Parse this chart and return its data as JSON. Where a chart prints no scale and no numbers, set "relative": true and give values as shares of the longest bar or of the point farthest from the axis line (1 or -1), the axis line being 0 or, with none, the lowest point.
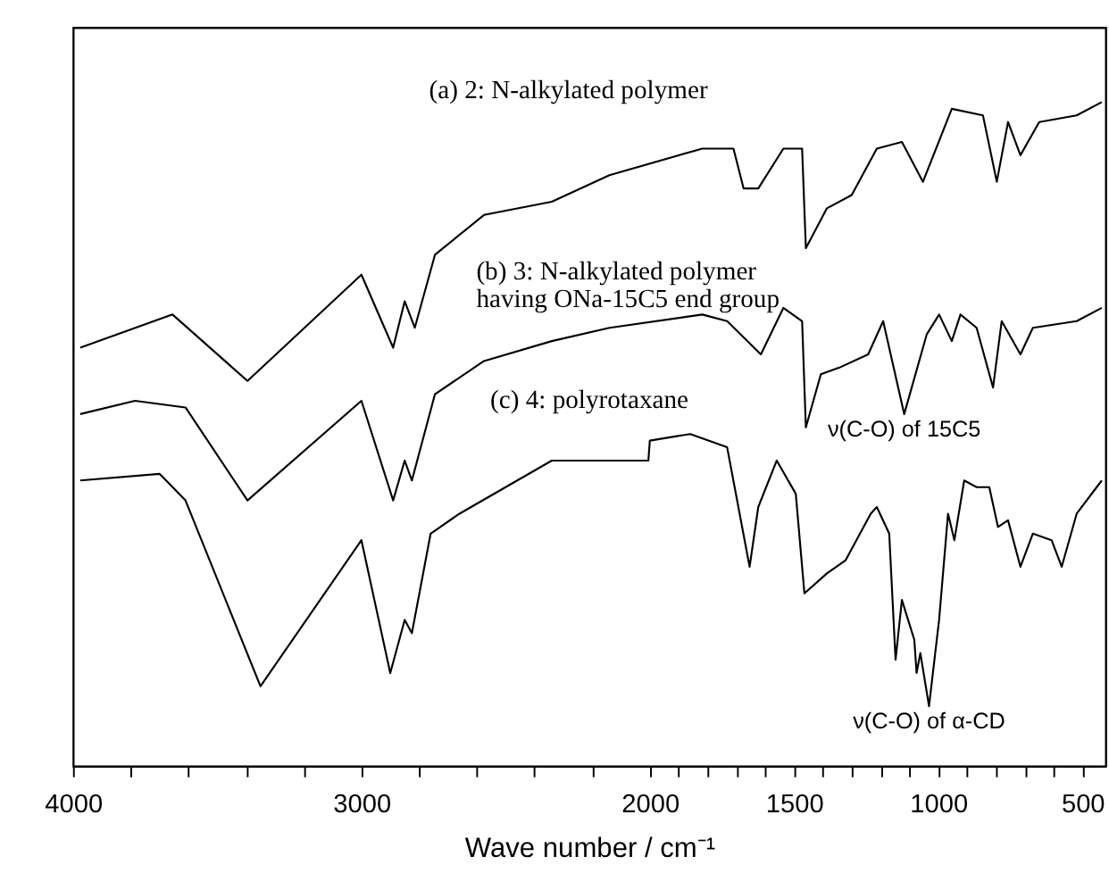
{
  "chart_data": {
    "type": "line",
    "relative": true,
    "xlabel": "Wave number / cm⁻¹",
    "xlim": [
      4000,
      420
    ],
    "xticks": [
      4000,
      {
        "value": 3800,
        "label": null
      },
      {
        "value": 3600,
        "label": null
      },
      {
        "value": 3400,
        "label": null
      },
      {
        "value": 3200,
        "label": null
      },
      3000,
      {
        "value": 2800,
        "label": null
      },
      {
        "value": 2600,
        "label": null
      },
      {
        "value": 2400,
        "label": null
      },
      {
        "value": 2200,
        "label": null
      },
      2000,
      {
        "value": 1900,
        "label": null
      },
      {
        "value": 1800,
        "label": null
      },
      {
        "value": 1700,
        "label": null
      },
      {
        "value": 1600,
        "label": null
      },
      1500,
      {
        "value": 1400,
        "label": null
      },
      {
        "value": 1300,
        "label": null
      },
      {
        "value": 1200,
        "label": null
      },
      {
        "value": 1100,
        "label": null
      },
      1000,
      {
        "value": 900,
        "label": null
      },
      {
        "value": 800,
        "label": null
      },
      {
        "value": 700,
        "label": null
      },
      {
        "value": 600,
        "label": null
      },
      500
    ],
    "grid": false,
    "marker": "none",
    "line_style": "solid",
    "series": [
      {
        "name": "(a) 2: N-alkylated polymer",
        "color": "#000000",
        "x": [
          3975,
          3655,
          3395,
          3000,
          2890,
          2850,
          2815,
          2745,
          2575,
          2340,
          2140,
          1818,
          1710,
          1675,
          1624,
          1537,
          1472,
          1459,
          1386,
          1300,
          1213,
          1126,
          1053,
          953,
          845,
          797,
          758,
          715,
          650,
          520,
          433
        ],
        "values": [
          0.63,
          0.68,
          0.58,
          0.74,
          0.63,
          0.7,
          0.66,
          0.77,
          0.83,
          0.85,
          0.89,
          0.93,
          0.93,
          0.87,
          0.87,
          0.93,
          0.93,
          0.78,
          0.84,
          0.86,
          0.93,
          0.94,
          0.88,
          0.99,
          0.98,
          0.88,
          0.97,
          0.92,
          0.97,
          0.98,
          1.0
        ]
      },
      {
        "name": "(b) 3: N-alkylated polymer\nhaving ONa-15C5 end group",
        "color": "#000000",
        "x": [
          3975,
          3785,
          3610,
          3395,
          3000,
          2890,
          2850,
          2825,
          2745,
          2575,
          2340,
          2140,
          1818,
          1732,
          1615,
          1537,
          1472,
          1459,
          1407,
          1343,
          1243,
          1191,
          1118,
          1040,
          997,
          953,
          923,
          867,
          810,
          780,
          715,
          672,
          520,
          433
        ],
        "values": [
          0.53,
          0.55,
          0.54,
          0.4,
          0.55,
          0.4,
          0.46,
          0.43,
          0.56,
          0.61,
          0.64,
          0.66,
          0.68,
          0.67,
          0.62,
          0.69,
          0.67,
          0.51,
          0.59,
          0.6,
          0.62,
          0.67,
          0.53,
          0.65,
          0.68,
          0.64,
          0.68,
          0.66,
          0.57,
          0.67,
          0.62,
          0.66,
          0.67,
          0.69
        ]
      },
      {
        "name": "(c) 4: polyrotaxane",
        "color": "#000000",
        "x": [
          3975,
          3700,
          3610,
          3350,
          3000,
          2900,
          2850,
          2825,
          2760,
          2660,
          2340,
          2225,
          2005,
          2000,
          1860,
          1732,
          1654,
          1624,
          1560,
          1494,
          1464,
          1386,
          1321,
          1234,
          1213,
          1170,
          1148,
          1126,
          1083,
          1075,
          1062,
          1032,
          997,
          966,
          944,
          910,
          867,
          823,
          793,
          758,
          715,
          672,
          607,
          572,
          520,
          433
        ],
        "values": [
          0.43,
          0.44,
          0.4,
          0.12,
          0.34,
          0.14,
          0.22,
          0.2,
          0.35,
          0.38,
          0.46,
          0.46,
          0.46,
          0.49,
          0.5,
          0.48,
          0.3,
          0.39,
          0.46,
          0.41,
          0.26,
          0.29,
          0.31,
          0.38,
          0.39,
          0.35,
          0.16,
          0.25,
          0.19,
          0.14,
          0.17,
          0.09,
          0.22,
          0.38,
          0.34,
          0.43,
          0.42,
          0.42,
          0.36,
          0.37,
          0.3,
          0.35,
          0.34,
          0.3,
          0.38,
          0.43
        ]
      }
    ],
    "annotations": [
      {
        "text": "ν(C-O) of 15C5",
        "x": 1118,
        "y": 0.53
      },
      {
        "text": "ν(C-O) of α-CD",
        "x": 1032,
        "y": 0.09
      }
    ]
  }
}
